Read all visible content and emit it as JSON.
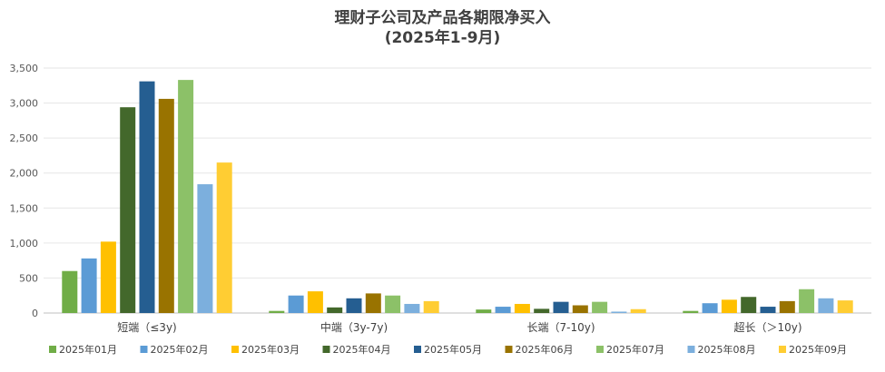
{
  "chart_data": {
    "type": "bar",
    "title_line1": "理财子公司及产品各期限净买入",
    "title_line2": "(2025年1-9月)",
    "categories": [
      "短端（≤3y)",
      "中端（3y-7y)",
      "长端（7-10y)",
      "超长（＞10y)"
    ],
    "ylim": [
      0,
      3500
    ],
    "yticks": [
      "0",
      "500",
      "1,000",
      "1,500",
      "2,000",
      "2,500",
      "3,000",
      "3,500"
    ],
    "ytick_values": [
      0,
      500,
      1000,
      1500,
      2000,
      2500,
      3000,
      3500
    ],
    "grid": true,
    "legend_position": "bottom",
    "series": [
      {
        "name": "2025年01月",
        "color": "#70AD47",
        "values": [
          600,
          30,
          50,
          30
        ]
      },
      {
        "name": "2025年02月",
        "color": "#5B9BD5",
        "values": [
          780,
          250,
          90,
          140
        ]
      },
      {
        "name": "2025年03月",
        "color": "#FFC000",
        "values": [
          1020,
          310,
          130,
          190
        ]
      },
      {
        "name": "2025年04月",
        "color": "#43682B",
        "values": [
          2940,
          80,
          60,
          230
        ]
      },
      {
        "name": "2025年05月",
        "color": "#255E91",
        "values": [
          3310,
          210,
          160,
          90
        ]
      },
      {
        "name": "2025年06月",
        "color": "#997300",
        "values": [
          3060,
          280,
          110,
          170
        ]
      },
      {
        "name": "2025年07月",
        "color": "#8CC168",
        "values": [
          3330,
          250,
          160,
          340
        ]
      },
      {
        "name": "2025年08月",
        "color": "#7CAFDD",
        "values": [
          1840,
          130,
          20,
          210
        ]
      },
      {
        "name": "2025年09月",
        "color": "#FFCD33",
        "values": [
          2150,
          170,
          55,
          180
        ]
      }
    ]
  }
}
